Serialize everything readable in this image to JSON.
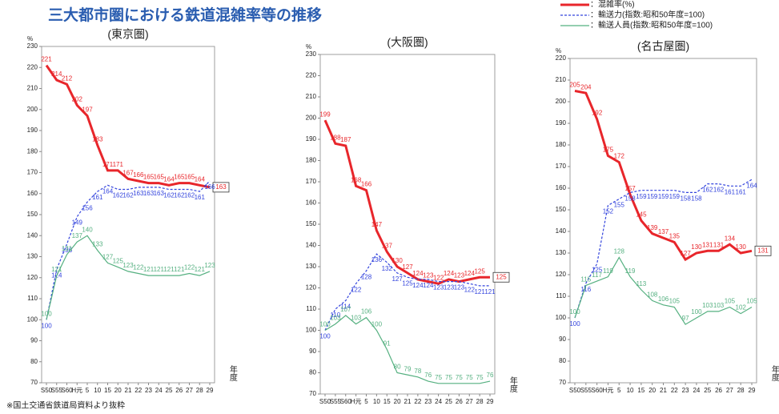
{
  "title": "三大都市圏における鉄道混雑率等の推移",
  "note": "※国土交通省鉄道局資料より抜粋",
  "legend": [
    {
      "name": "：混雑率(%)",
      "color": "#e8262b",
      "dash": false
    },
    {
      "name": "：輸送力(指数:昭和50年度=100)",
      "color": "#3344dd",
      "dash": true
    },
    {
      "name": "：輸送人員(指数:昭和50年度=100)",
      "color": "#55b080",
      "dash": false
    }
  ],
  "chart_data": [
    {
      "type": "line",
      "subtitle": "(東京圏)",
      "y_unit": "%",
      "x_label": "年度",
      "categories": [
        "S50",
        "S55",
        "S60",
        "H元",
        "5",
        "10",
        "15",
        "20",
        "21",
        "22",
        "23",
        "24",
        "25",
        "26",
        "27",
        "28",
        "29"
      ],
      "ylim": [
        70,
        230
      ],
      "yticks": [
        70,
        80,
        90,
        100,
        110,
        120,
        130,
        140,
        150,
        160,
        170,
        180,
        190,
        200,
        210,
        220,
        230
      ],
      "series": [
        {
          "color": "#e8262b",
          "values": [
            221,
            214,
            212,
            202,
            197,
            183,
            171,
            171,
            167,
            166,
            165,
            165,
            164,
            165,
            165,
            164,
            163
          ]
        },
        {
          "color": "#3344dd",
          "values": [
            100,
            124,
            136,
            149,
            156,
            161,
            164,
            162,
            162,
            163,
            163,
            163,
            162,
            162,
            162,
            161,
            166
          ]
        },
        {
          "color": "#55b080",
          "values": [
            100,
            121,
            131,
            137,
            140,
            133,
            127,
            125,
            123,
            122,
            121,
            121,
            121,
            121,
            122,
            121,
            123
          ]
        }
      ]
    },
    {
      "type": "line",
      "subtitle": "(大阪圏)",
      "y_unit": "%",
      "x_label": "年度",
      "categories": [
        "S50",
        "S55",
        "S60",
        "H元",
        "5",
        "10",
        "15",
        "20",
        "21",
        "22",
        "23",
        "24",
        "25",
        "26",
        "27",
        "28",
        "29"
      ],
      "ylim": [
        70,
        230
      ],
      "yticks": [
        70,
        80,
        90,
        100,
        110,
        120,
        130,
        140,
        150,
        160,
        170,
        180,
        190,
        200,
        210,
        220,
        230
      ],
      "series": [
        {
          "color": "#e8262b",
          "values": [
            199,
            188,
            187,
            168,
            166,
            147,
            137,
            130,
            127,
            124,
            123,
            122,
            124,
            123,
            124,
            125,
            125
          ]
        },
        {
          "color": "#3344dd",
          "values": [
            100,
            110,
            114,
            122,
            128,
            136,
            132,
            127,
            125,
            124,
            124,
            123,
            123,
            123,
            122,
            121,
            121
          ]
        },
        {
          "color": "#55b080",
          "values": [
            100,
            103,
            107,
            103,
            106,
            100,
            91,
            80,
            79,
            78,
            76,
            75,
            75,
            75,
            75,
            75,
            76
          ]
        }
      ]
    },
    {
      "type": "line",
      "subtitle": "(名古屋圏)",
      "y_unit": "%",
      "x_label": "年度",
      "categories": [
        "S50",
        "S55",
        "S60",
        "H元",
        "5",
        "10",
        "15",
        "20",
        "21",
        "22",
        "23",
        "24",
        "25",
        "26",
        "27",
        "28",
        "29"
      ],
      "ylim": [
        70,
        220
      ],
      "yticks": [
        70,
        80,
        90,
        100,
        110,
        120,
        130,
        140,
        150,
        160,
        170,
        180,
        190,
        200,
        210,
        220
      ],
      "series": [
        {
          "color": "#e8262b",
          "values": [
            205,
            204,
            192,
            175,
            172,
            157,
            145,
            139,
            137,
            135,
            127,
            130,
            131,
            131,
            134,
            130,
            131
          ]
        },
        {
          "color": "#3344dd",
          "values": [
            100,
            116,
            125,
            152,
            155,
            158,
            159,
            159,
            159,
            159,
            158,
            158,
            162,
            162,
            161,
            161,
            164
          ]
        },
        {
          "color": "#55b080",
          "values": [
            100,
            115,
            117,
            119,
            128,
            119,
            113,
            108,
            106,
            105,
            97,
            100,
            103,
            103,
            105,
            102,
            105
          ]
        }
      ]
    }
  ]
}
